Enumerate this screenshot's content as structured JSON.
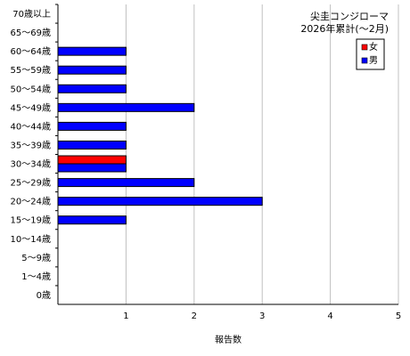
{
  "chart_data": {
    "type": "bar",
    "orientation": "horizontal",
    "title": "尖圭コンジローマ",
    "subtitle": "2026年累計(～2月)",
    "xlabel": "報告数",
    "ylabel": "",
    "xlim": [
      0,
      5
    ],
    "x_ticks": [
      1,
      2,
      3,
      4,
      5
    ],
    "grid": true,
    "legend_position": "top-right",
    "categories": [
      "70歳以上",
      "65～69歳",
      "60～64歳",
      "55～59歳",
      "50～54歳",
      "45～49歳",
      "40～44歳",
      "35～39歳",
      "30～34歳",
      "25～29歳",
      "20～24歳",
      "15～19歳",
      "10～14歳",
      "5～9歳",
      "1～4歳",
      "0歳"
    ],
    "series": [
      {
        "name": "女",
        "color": "#ff0000",
        "values": [
          0,
          0,
          0,
          0,
          0,
          0,
          0,
          0,
          1,
          0,
          0,
          0,
          0,
          0,
          0,
          0
        ]
      },
      {
        "name": "男",
        "color": "#0000ff",
        "values": [
          0,
          0,
          1,
          1,
          1,
          2,
          1,
          1,
          1,
          2,
          3,
          1,
          0,
          0,
          0,
          0
        ]
      }
    ]
  }
}
